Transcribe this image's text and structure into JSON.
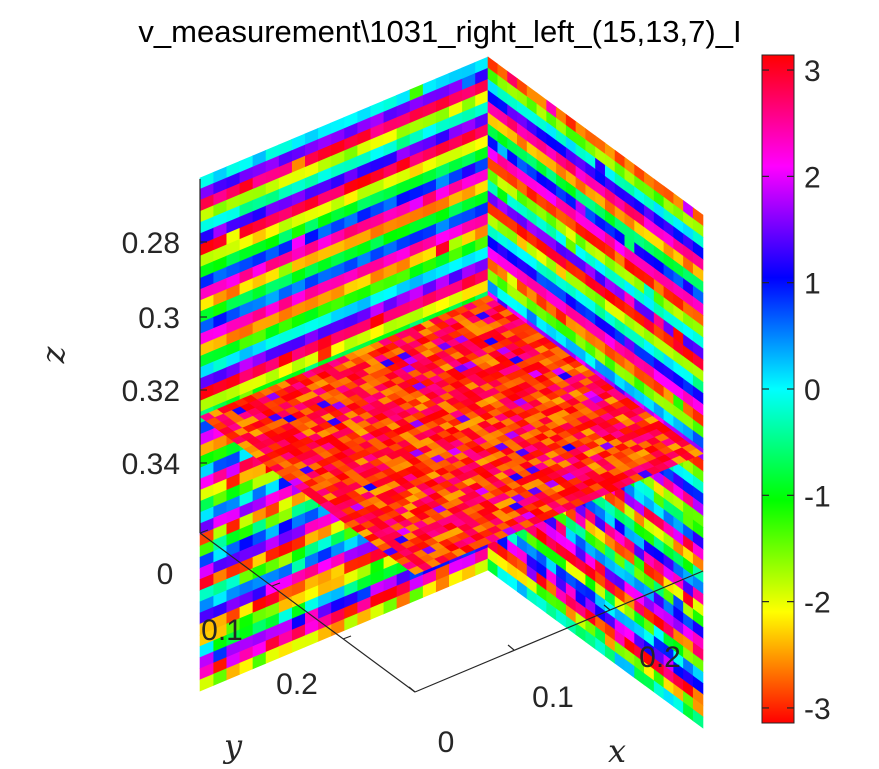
{
  "chart_data": {
    "type": "heatmap",
    "title": "v_measurement\\1031_right_left_(15,13,7)_I",
    "xlabel": "x",
    "ylabel": "y",
    "zlabel": "z",
    "x_ticks": [
      "0",
      "0.1",
      "0.2"
    ],
    "y_ticks": [
      "0",
      "0.1",
      "0.2"
    ],
    "z_ticks": [
      "0.28",
      "0.3",
      "0.32",
      "0.34"
    ],
    "colorbar": {
      "ticks": [
        "3",
        "2",
        "1",
        "0",
        "-1",
        "-2",
        "-3"
      ],
      "range": [
        -3.14159,
        3.14159
      ],
      "colormap": "hsv"
    },
    "slices": [
      {
        "plane": "y = 0 (back-left wall)",
        "pattern": "horizontal bands cycling the full phase range"
      },
      {
        "plane": "x = 0 (back-right wall)",
        "pattern": "horizontal bands cycling the full phase range"
      },
      {
        "plane": "z ≈ 0.315 (horizontal slice)",
        "pattern": "mostly red/magenta (phase near ±π) with sparse blue/purple speckles"
      }
    ],
    "grid": false,
    "colors": {
      "axis": "#262626",
      "colormap_hsv": [
        "#ff0000",
        "#ffff00",
        "#00ff00",
        "#00ffff",
        "#0000ff",
        "#ff00ff",
        "#ff0000"
      ]
    }
  }
}
